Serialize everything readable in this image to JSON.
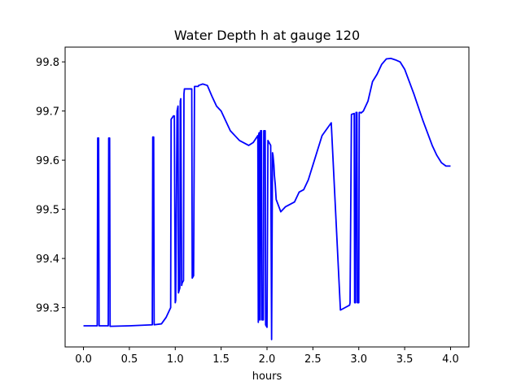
{
  "chart_data": {
    "type": "line",
    "title": "Water Depth h at gauge 120",
    "xlabel": "hours",
    "ylabel": "",
    "xlim": [
      -0.2,
      4.2
    ],
    "ylim": [
      99.22,
      99.83
    ],
    "xticks": [
      0.0,
      0.5,
      1.0,
      1.5,
      2.0,
      2.5,
      3.0,
      3.5,
      4.0
    ],
    "xtick_labels": [
      "0.0",
      "0.5",
      "1.0",
      "1.5",
      "2.0",
      "2.5",
      "3.0",
      "3.5",
      "4.0"
    ],
    "yticks": [
      99.3,
      99.4,
      99.5,
      99.6,
      99.7,
      99.8
    ],
    "ytick_labels": [
      "99.3",
      "99.4",
      "99.5",
      "99.6",
      "99.7",
      "99.8"
    ],
    "grid": false,
    "series": [
      {
        "color": "#0000ff",
        "x": [
          0.0,
          0.15,
          0.155,
          0.165,
          0.17,
          0.27,
          0.275,
          0.285,
          0.29,
          0.5,
          0.75,
          0.755,
          0.765,
          0.77,
          0.85,
          0.9,
          0.95,
          0.955,
          0.98,
          0.99,
          1.0,
          1.005,
          1.02,
          1.03,
          1.035,
          1.05,
          1.055,
          1.06,
          1.07,
          1.075,
          1.09,
          1.095,
          1.1,
          1.18,
          1.185,
          1.2,
          1.21,
          1.25,
          1.255,
          1.27,
          1.3,
          1.35,
          1.4,
          1.45,
          1.5,
          1.55,
          1.6,
          1.7,
          1.8,
          1.85,
          1.9,
          1.905,
          1.91,
          1.915,
          1.92,
          1.925,
          1.93,
          1.94,
          1.945,
          1.96,
          1.965,
          1.98,
          1.985,
          2.0,
          2.01,
          2.04,
          2.05,
          2.06,
          2.065,
          2.075,
          2.08,
          2.09,
          2.1,
          2.15,
          2.2,
          2.25,
          2.3,
          2.35,
          2.4,
          2.45,
          2.5,
          2.55,
          2.6,
          2.7,
          2.8,
          2.85,
          2.9,
          2.905,
          2.92,
          2.95,
          2.955,
          2.965,
          2.97,
          2.98,
          2.985,
          3.0,
          3.005,
          3.02,
          3.025,
          3.05,
          3.1,
          3.15,
          3.2,
          3.25,
          3.3,
          3.35,
          3.4,
          3.45,
          3.5,
          3.55,
          3.6,
          3.7,
          3.8,
          3.85,
          3.9,
          3.95,
          4.0
        ],
        "y": [
          99.263,
          99.263,
          99.645,
          99.645,
          99.263,
          99.263,
          99.645,
          99.645,
          99.262,
          99.263,
          99.265,
          99.647,
          99.647,
          99.265,
          99.267,
          99.28,
          99.3,
          99.683,
          99.69,
          99.69,
          99.31,
          99.315,
          99.7,
          99.71,
          99.33,
          99.34,
          99.72,
          99.725,
          99.345,
          99.35,
          99.355,
          99.735,
          99.745,
          99.745,
          99.36,
          99.365,
          99.75,
          99.75,
          99.752,
          99.753,
          99.755,
          99.752,
          99.73,
          99.71,
          99.7,
          99.68,
          99.66,
          99.64,
          99.63,
          99.636,
          99.65,
          99.27,
          99.653,
          99.656,
          99.275,
          99.275,
          99.66,
          99.66,
          99.275,
          99.275,
          99.66,
          99.66,
          99.265,
          99.26,
          99.64,
          99.63,
          99.235,
          99.615,
          99.61,
          99.59,
          99.57,
          99.55,
          99.52,
          99.495,
          99.505,
          99.51,
          99.515,
          99.535,
          99.54,
          99.56,
          99.59,
          99.62,
          99.65,
          99.676,
          99.295,
          99.3,
          99.305,
          99.31,
          99.693,
          99.695,
          99.31,
          99.31,
          99.697,
          99.697,
          99.31,
          99.31,
          99.697,
          99.697,
          99.696,
          99.7,
          99.72,
          99.76,
          99.775,
          99.795,
          99.806,
          99.807,
          99.804,
          99.8,
          99.785,
          99.76,
          99.735,
          99.68,
          99.63,
          99.61,
          99.595,
          99.588,
          99.588
        ]
      }
    ]
  }
}
